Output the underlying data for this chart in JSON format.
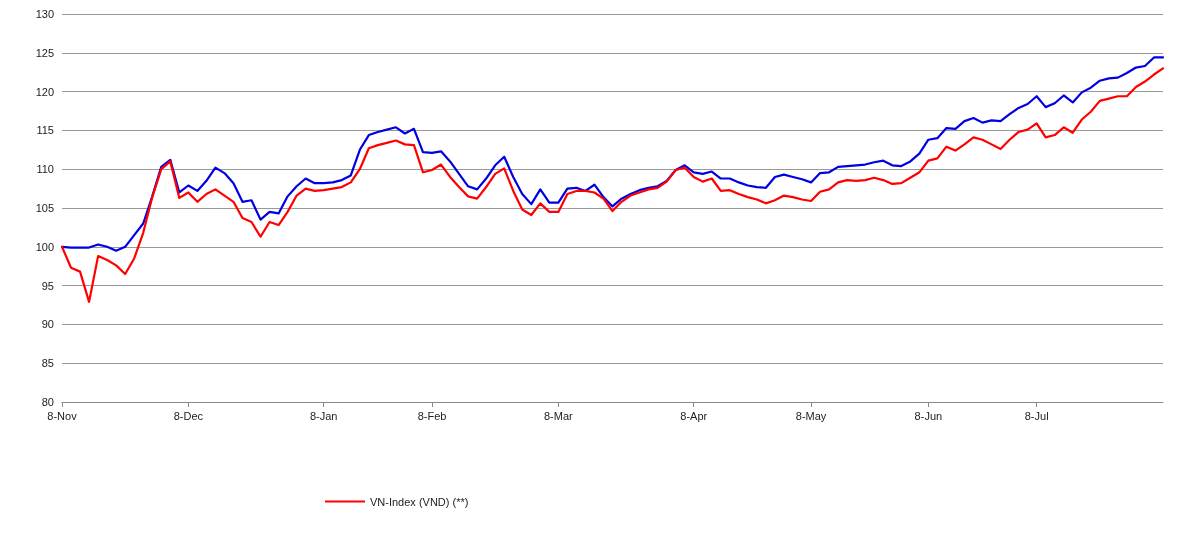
{
  "chart_data": {
    "type": "line",
    "categories": [
      "8-Nov",
      null,
      null,
      null,
      null,
      null,
      null,
      null,
      null,
      null,
      null,
      null,
      null,
      null,
      "8-Dec",
      null,
      null,
      null,
      null,
      null,
      null,
      null,
      null,
      null,
      null,
      null,
      null,
      null,
      null,
      "8-Jan",
      null,
      null,
      null,
      null,
      null,
      null,
      null,
      null,
      null,
      null,
      null,
      "8-Feb",
      null,
      null,
      null,
      null,
      null,
      null,
      null,
      null,
      null,
      null,
      null,
      null,
      null,
      "8-Mar",
      null,
      null,
      null,
      null,
      null,
      null,
      null,
      null,
      null,
      null,
      null,
      null,
      null,
      null,
      "8-Apr",
      null,
      null,
      null,
      null,
      null,
      null,
      null,
      null,
      null,
      null,
      null,
      null,
      "8-May",
      null,
      null,
      null,
      null,
      null,
      null,
      null,
      null,
      null,
      null,
      null,
      null,
      "8-Jun",
      null,
      null,
      null,
      null,
      null,
      null,
      null,
      null,
      null,
      null,
      null,
      "8-Jul",
      null,
      null,
      null,
      null,
      null,
      null,
      null,
      null,
      null,
      null,
      null,
      null,
      null,
      null
    ],
    "series": [
      {
        "color": "#0000e0",
        "values": [
          100,
          99.9,
          99.9,
          99.9,
          100.3,
          100,
          99.5,
          100,
          101.5,
          103,
          106.5,
          110.3,
          111.2,
          107,
          107.9,
          107.2,
          108.5,
          110.2,
          109.5,
          108.2,
          105.8,
          106,
          103.5,
          104.5,
          104.3,
          106.5,
          107.8,
          108.8,
          108.2,
          108.2,
          108.3,
          108.6,
          109.2,
          112.5,
          114.4,
          114.8,
          115.1,
          115.4,
          114.6,
          115.2,
          112.2,
          112.1,
          112.3,
          111,
          109.4,
          107.8,
          107.4,
          108.8,
          110.5,
          111.6,
          109,
          106.8,
          105.5,
          107.4,
          105.7,
          105.7,
          107.5,
          107.6,
          107.2,
          108,
          106.4,
          105.2,
          106.2,
          106.8,
          107.3,
          107.6,
          107.8,
          108.5,
          109.9,
          110.5,
          109.6,
          109.4,
          109.7,
          108.8,
          108.8,
          108.3,
          107.9,
          107.7,
          107.6,
          109,
          109.3,
          109,
          108.7,
          108.3,
          109.5,
          109.6,
          110.3,
          110.4,
          110.5,
          110.6,
          110.9,
          111.1,
          110.5,
          110.4,
          111,
          112,
          113.8,
          114,
          115.3,
          115.2,
          116.2,
          116.6,
          116,
          116.3,
          116.2,
          117.1,
          117.9,
          118.4,
          119.4,
          118,
          118.5,
          119.5,
          118.6,
          119.9,
          120.5,
          121.4,
          121.7,
          121.8,
          122.4,
          123.1,
          123.3,
          124.4,
          124.4
        ]
      },
      {
        "name": "VN-Index (VND) (**)",
        "color": "#ff0000",
        "values": [
          100,
          97.3,
          96.8,
          92.9,
          98.8,
          98.3,
          97.6,
          96.5,
          98.5,
          101.8,
          106.4,
          110,
          111,
          106.3,
          107,
          105.8,
          106.8,
          107.4,
          106.6,
          105.8,
          103.7,
          103.2,
          101.3,
          103.2,
          102.8,
          104.5,
          106.6,
          107.5,
          107.2,
          107.3,
          107.5,
          107.7,
          108.3,
          110,
          112.7,
          113.1,
          113.4,
          113.7,
          113.2,
          113.1,
          109.6,
          109.9,
          110.6,
          109,
          107.7,
          106.5,
          106.2,
          107.7,
          109.4,
          110.1,
          107.2,
          104.8,
          104.1,
          105.6,
          104.5,
          104.5,
          106.8,
          107.2,
          107.2,
          107,
          106.2,
          104.6,
          105.8,
          106.6,
          107,
          107.4,
          107.6,
          108.4,
          109.9,
          110.2,
          109,
          108.4,
          108.8,
          107.2,
          107.3,
          106.8,
          106.4,
          106.1,
          105.6,
          106,
          106.6,
          106.4,
          106.1,
          105.9,
          107.1,
          107.4,
          108.3,
          108.6,
          108.5,
          108.6,
          108.9,
          108.6,
          108.1,
          108.2,
          108.9,
          109.6,
          111.1,
          111.4,
          112.9,
          112.4,
          113.2,
          114.1,
          113.8,
          113.2,
          112.6,
          113.8,
          114.8,
          115.1,
          115.9,
          114.1,
          114.4,
          115.4,
          114.7,
          116.4,
          117.4,
          118.8,
          119.1,
          119.4,
          119.4,
          120.6,
          121.3,
          122.2,
          123
        ]
      }
    ],
    "ylim": [
      80,
      130
    ],
    "yticks": [
      80,
      85,
      90,
      95,
      100,
      105,
      110,
      115,
      120,
      125,
      130
    ],
    "grid": "y",
    "legend": "bottom",
    "marker": "none",
    "line_style": "solid"
  }
}
